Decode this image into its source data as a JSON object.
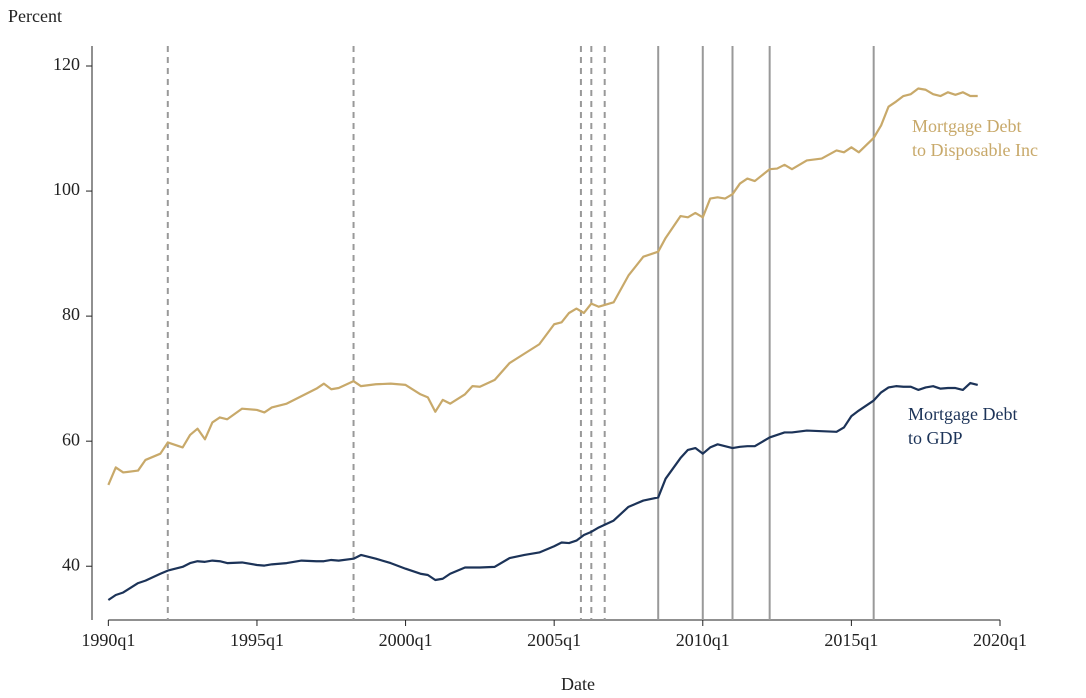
{
  "chart_data": {
    "type": "line",
    "y_label": "Percent",
    "x_label": "Date",
    "xlim": [
      1989.45,
      2020
    ],
    "ylim": [
      31.4,
      123.2
    ],
    "xticks": [
      {
        "value": 1990,
        "label": "1990q1"
      },
      {
        "value": 1995,
        "label": "1995q1"
      },
      {
        "value": 2000,
        "label": "2000q1"
      },
      {
        "value": 2005,
        "label": "2005q1"
      },
      {
        "value": 2010,
        "label": "2010q1"
      },
      {
        "value": 2015,
        "label": "2015q1"
      },
      {
        "value": 2020,
        "label": "2020q1"
      }
    ],
    "yticks": [
      40,
      60,
      80,
      100,
      120
    ],
    "vlines_dashed": [
      1992,
      1998.25,
      2005.9,
      2006.25,
      2006.7
    ],
    "vlines_solid": [
      2008.5,
      2010,
      2011,
      2012.25,
      2015.75
    ],
    "x": [
      1990,
      1990.25,
      1990.5,
      1991,
      1991.25,
      1991.75,
      1992,
      1992.5,
      1992.75,
      1993,
      1993.25,
      1993.5,
      1993.75,
      1994,
      1994.5,
      1995,
      1995.25,
      1995.5,
      1996,
      1996.5,
      1997,
      1997.25,
      1997.5,
      1997.75,
      1998.25,
      1998.5,
      1999,
      1999.5,
      2000,
      2000.5,
      2000.75,
      2001,
      2001.25,
      2001.5,
      2002,
      2002.25,
      2002.5,
      2003,
      2003.5,
      2004,
      2004.5,
      2005,
      2005.25,
      2005.5,
      2005.75,
      2006,
      2006.25,
      2006.5,
      2007,
      2007.5,
      2008,
      2008.5,
      2008.75,
      2009.25,
      2009.5,
      2009.75,
      2010,
      2010.25,
      2010.5,
      2010.75,
      2011,
      2011.25,
      2011.5,
      2011.75,
      2012.25,
      2012.5,
      2012.75,
      2013,
      2013.5,
      2014,
      2014.5,
      2014.75,
      2015,
      2015.25,
      2015.75,
      2016,
      2016.25,
      2016.5,
      2016.75,
      2017,
      2017.25,
      2017.5,
      2017.75,
      2018,
      2018.25,
      2018.5,
      2018.75,
      2019,
      2019.25
    ],
    "series": [
      {
        "name": "Mortgage Debt to Disposable Inc",
        "color": "#c8a96a",
        "values": [
          53,
          55.8,
          55,
          55.3,
          57,
          58,
          59.8,
          59,
          61,
          62,
          60.3,
          63,
          63.8,
          63.5,
          65.2,
          65,
          64.6,
          65.4,
          66,
          67.2,
          68.4,
          69.2,
          68.3,
          68.5,
          69.6,
          68.8,
          69.1,
          69.2,
          69,
          67.5,
          67,
          64.7,
          66.6,
          66,
          67.5,
          68.8,
          68.7,
          69.8,
          72.5,
          74,
          75.5,
          78.7,
          79,
          80.5,
          81.2,
          80.5,
          82,
          81.5,
          82.2,
          86.5,
          89.5,
          90.3,
          92.5,
          96,
          95.8,
          96.5,
          95.8,
          98.8,
          99,
          98.8,
          99.5,
          101.2,
          102,
          101.6,
          103.5,
          103.6,
          104.2,
          103.5,
          104.9,
          105.2,
          106.5,
          106.2,
          107,
          106.2,
          108.5,
          110.5,
          113.5,
          114.3,
          115.2,
          115.5,
          116.4,
          116.2,
          115.5,
          115.2,
          115.8,
          115.4,
          115.8,
          115.2,
          115.2
        ]
      },
      {
        "name": "Mortgage Debt to GDP",
        "color": "#1c3358",
        "values": [
          34.6,
          35.4,
          35.8,
          37.3,
          37.7,
          38.8,
          39.3,
          39.9,
          40.5,
          40.8,
          40.7,
          40.9,
          40.8,
          40.5,
          40.6,
          40.2,
          40.1,
          40.3,
          40.5,
          40.9,
          40.8,
          40.8,
          41,
          40.9,
          41.2,
          41.8,
          41.2,
          40.5,
          39.6,
          38.8,
          38.6,
          37.8,
          38,
          38.8,
          39.8,
          39.8,
          39.8,
          39.9,
          41.3,
          41.8,
          42.2,
          43.2,
          43.8,
          43.7,
          44.1,
          45,
          45.5,
          46.2,
          47.3,
          49.5,
          50.5,
          51,
          54,
          57.3,
          58.6,
          58.9,
          58,
          59,
          59.5,
          59.2,
          58.9,
          59.1,
          59.2,
          59.2,
          60.6,
          61,
          61.4,
          61.4,
          61.7,
          61.6,
          61.5,
          62.2,
          64,
          64.9,
          66.5,
          67.8,
          68.6,
          68.8,
          68.7,
          68.7,
          68.2,
          68.6,
          68.8,
          68.4,
          68.5,
          68.5,
          68.2,
          69.3,
          69
        ]
      }
    ]
  }
}
